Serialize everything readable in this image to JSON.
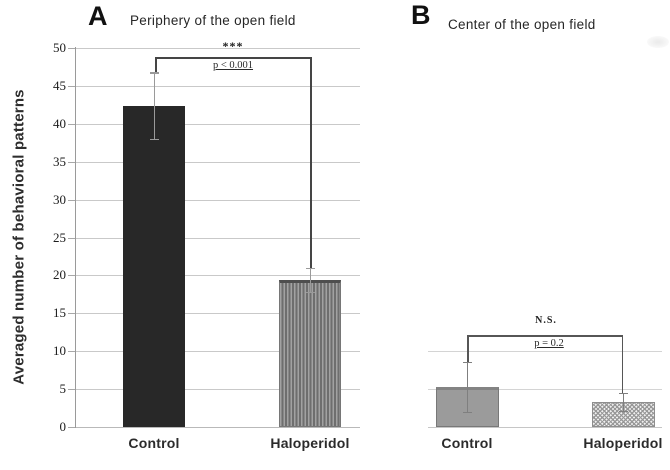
{
  "figure": {
    "background": "#ffffff",
    "ylabel": "Averaged number of behavioral patterns"
  },
  "colors": {
    "bar_solid_black": "#282828",
    "bar_stripe_gray": "#8a8a8a",
    "bar_solid_gray": "#9b9b9b",
    "bar_check_gray": "#989898",
    "gridline": "#c9c9c9",
    "bracket": "#454545"
  },
  "chart_data": [
    {
      "type": "bar",
      "panel": "A",
      "title": "Periphery of the open field",
      "categories": [
        "Control",
        "Haloperidol"
      ],
      "values": [
        42.4,
        19.4
      ],
      "errors": [
        4.4,
        1.6
      ],
      "bar_styles": [
        "solid-black",
        "vertical-stripes"
      ],
      "ylabel": "Averaged number of behavioral patterns",
      "ylim": [
        0,
        50
      ],
      "yticks": [
        0,
        5,
        10,
        15,
        20,
        25,
        30,
        35,
        40,
        45,
        50
      ],
      "grid": "horizontal every 5, light gray",
      "legend": "none",
      "significance": {
        "stars": "***",
        "p_label": "p < 0.001"
      }
    },
    {
      "type": "bar",
      "panel": "B",
      "title": "Center of the open field",
      "categories": [
        "Control",
        "Haloperidol"
      ],
      "values": [
        5.3,
        3.3
      ],
      "errors": [
        3.3,
        1.2
      ],
      "bar_styles": [
        "solid-gray",
        "checkered"
      ],
      "ylim": [
        0,
        50
      ],
      "yticks_shown": [],
      "visible_gridlines": [
        5,
        10
      ],
      "legend": "none",
      "significance": {
        "stars": "N.S.",
        "p_label": "p = 0.2"
      }
    }
  ]
}
